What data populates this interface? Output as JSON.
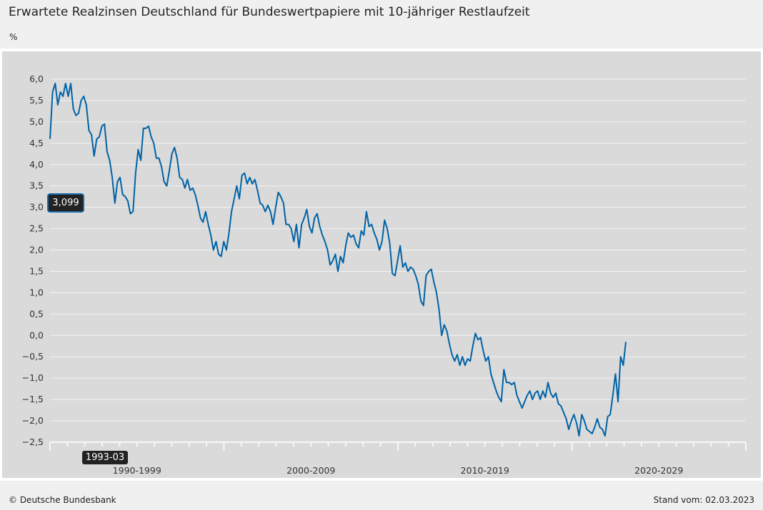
{
  "header": {
    "title": "Erwartete Realzinsen Deutschland für Bundeswertpapiere mit 10-jähriger Restlaufzeit",
    "unit": "%"
  },
  "footer": {
    "copyright": "© Deutsche Bundesbank",
    "stand": "Stand vom: 02.03.2023"
  },
  "tooltip": {
    "y_value": "3,099",
    "x_value": "1993-03"
  },
  "colors": {
    "line": "#0063a6",
    "background": "#dadada",
    "grid": "#f2f2f2"
  },
  "chart_data": {
    "type": "line",
    "title": "Erwartete Realzinsen Deutschland für Bundeswertpapiere mit 10-jähriger Restlaufzeit",
    "ylabel": "%",
    "ylim": [
      -2.5,
      6.0
    ],
    "yticks": [
      6.0,
      5.5,
      5.0,
      4.5,
      4.0,
      3.5,
      3.0,
      2.5,
      2.0,
      1.5,
      1.0,
      0.5,
      0.0,
      -0.5,
      -1.0,
      -1.5,
      -2.0,
      -2.5
    ],
    "ytick_labels": [
      "6,0",
      "5,5",
      "5,0",
      "4,5",
      "4,0",
      "3,5",
      "3,0",
      "2,5",
      "2,0",
      "1,5",
      "1,0",
      "0,5",
      "0,0",
      "−0,5",
      "−1,0",
      "−1,5",
      "−2,0",
      "−2,5"
    ],
    "xlim": [
      1990,
      2030
    ],
    "x_categories": [
      "1990-1999",
      "2000-2009",
      "2010-2019",
      "2020-2029"
    ],
    "grid": true,
    "series": [
      {
        "name": "Erwartete Realzinsen",
        "x_start": 1990.0,
        "x_end": 2023.1,
        "values": [
          4.6,
          5.7,
          5.9,
          5.4,
          5.7,
          5.6,
          5.9,
          5.6,
          5.9,
          5.3,
          5.15,
          5.2,
          5.5,
          5.6,
          5.4,
          4.8,
          4.7,
          4.2,
          4.6,
          4.65,
          4.9,
          4.95,
          4.3,
          4.1,
          3.7,
          3.1,
          3.6,
          3.7,
          3.3,
          3.25,
          3.15,
          2.85,
          2.9,
          3.8,
          4.35,
          4.1,
          4.85,
          4.85,
          4.9,
          4.65,
          4.5,
          4.15,
          4.15,
          3.95,
          3.6,
          3.5,
          3.85,
          4.25,
          4.4,
          4.15,
          3.7,
          3.65,
          3.45,
          3.65,
          3.4,
          3.45,
          3.3,
          3.05,
          2.75,
          2.65,
          2.9,
          2.6,
          2.35,
          2.0,
          2.2,
          1.9,
          1.85,
          2.2,
          2.0,
          2.4,
          2.9,
          3.2,
          3.5,
          3.2,
          3.75,
          3.8,
          3.55,
          3.7,
          3.55,
          3.65,
          3.4,
          3.1,
          3.05,
          2.9,
          3.05,
          2.9,
          2.6,
          3.0,
          3.35,
          3.25,
          3.1,
          2.6,
          2.6,
          2.5,
          2.2,
          2.6,
          2.05,
          2.6,
          2.75,
          2.95,
          2.55,
          2.4,
          2.75,
          2.85,
          2.55,
          2.35,
          2.2,
          2.0,
          1.65,
          1.75,
          1.9,
          1.5,
          1.85,
          1.7,
          2.1,
          2.4,
          2.3,
          2.35,
          2.15,
          2.05,
          2.45,
          2.35,
          2.9,
          2.55,
          2.6,
          2.4,
          2.25,
          2.0,
          2.2,
          2.7,
          2.5,
          2.15,
          1.45,
          1.4,
          1.75,
          2.1,
          1.6,
          1.7,
          1.5,
          1.6,
          1.55,
          1.4,
          1.2,
          0.8,
          0.7,
          1.4,
          1.5,
          1.55,
          1.25,
          1.0,
          0.6,
          0.0,
          0.25,
          0.1,
          -0.2,
          -0.45,
          -0.6,
          -0.45,
          -0.7,
          -0.5,
          -0.7,
          -0.55,
          -0.6,
          -0.25,
          0.05,
          -0.1,
          -0.05,
          -0.35,
          -0.6,
          -0.5,
          -0.9,
          -1.1,
          -1.3,
          -1.45,
          -1.55,
          -0.8,
          -1.1,
          -1.1,
          -1.15,
          -1.1,
          -1.4,
          -1.55,
          -1.7,
          -1.55,
          -1.4,
          -1.3,
          -1.5,
          -1.35,
          -1.3,
          -1.5,
          -1.3,
          -1.45,
          -1.1,
          -1.35,
          -1.45,
          -1.35,
          -1.6,
          -1.65,
          -1.8,
          -1.95,
          -2.2,
          -2.0,
          -1.85,
          -2.05,
          -2.35,
          -1.85,
          -2.0,
          -2.2,
          -2.25,
          -2.3,
          -2.15,
          -1.95,
          -2.15,
          -2.2,
          -2.35,
          -1.9,
          -1.85,
          -1.4,
          -0.9,
          -1.55,
          -0.5,
          -0.7,
          -0.15
        ]
      }
    ]
  }
}
